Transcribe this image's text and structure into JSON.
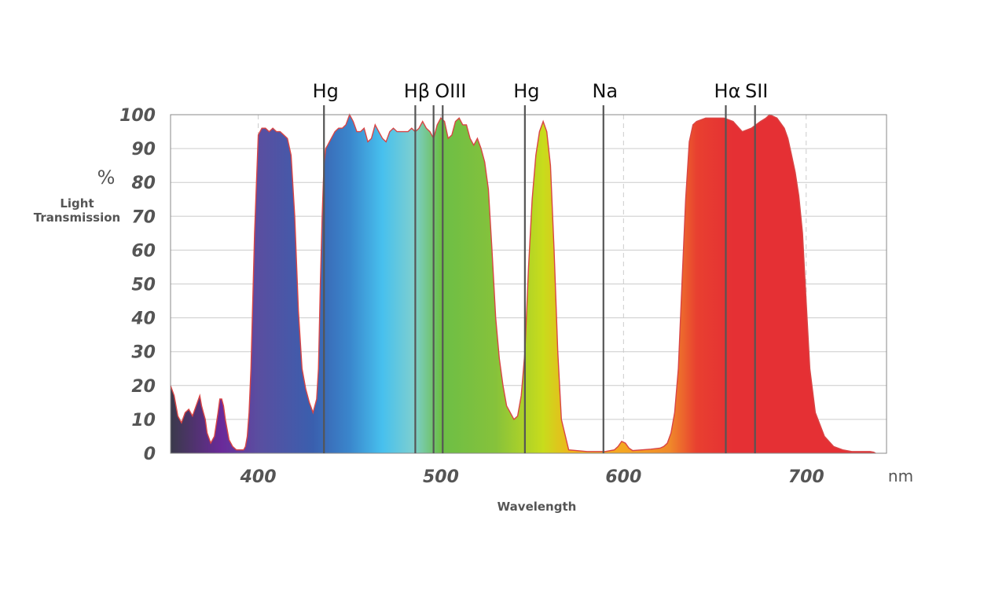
{
  "chart_data": {
    "type": "area",
    "xlabel": "Wavelength",
    "x_unit": "nm",
    "ylabel_unit": "%",
    "ylabel": "Light Transmission",
    "ylabel_lines": [
      "Light",
      "Transmission"
    ],
    "xlim": [
      352,
      744
    ],
    "ylim": [
      0,
      100
    ],
    "x_ticks": [
      400,
      500,
      600,
      700
    ],
    "y_ticks": [
      0,
      10,
      20,
      30,
      40,
      50,
      60,
      70,
      80,
      90,
      100
    ],
    "grid": true,
    "series": [
      {
        "x": [
          352,
          354,
          356,
          358,
          360,
          362,
          364,
          366,
          368,
          369,
          370,
          371,
          372,
          374,
          376,
          378,
          379,
          380,
          381,
          382,
          384,
          386,
          388,
          390,
          392,
          393,
          394,
          395,
          396,
          397,
          398,
          400,
          402,
          404,
          406,
          408,
          410,
          412,
          414,
          416,
          418,
          420,
          422,
          424,
          426,
          428,
          430,
          432,
          433,
          434,
          435,
          436,
          437,
          438,
          439,
          440,
          442,
          444,
          446,
          448,
          450,
          452,
          454,
          456,
          458,
          460,
          462,
          464,
          466,
          468,
          470,
          472,
          474,
          476,
          478,
          480,
          482,
          484,
          486,
          488,
          490,
          492,
          494,
          496,
          498,
          500,
          502,
          504,
          506,
          508,
          510,
          512,
          514,
          516,
          518,
          520,
          522,
          524,
          526,
          528,
          530,
          532,
          534,
          536,
          538,
          540,
          542,
          544,
          546,
          548,
          550,
          552,
          554,
          556,
          558,
          560,
          562,
          564,
          566,
          570,
          580,
          590,
          595,
          597,
          599,
          601,
          603,
          605,
          610,
          615,
          620,
          622,
          624,
          626,
          628,
          630,
          632,
          634,
          636,
          638,
          640,
          645,
          650,
          655,
          660,
          665,
          670,
          675,
          678,
          680,
          684,
          688,
          690,
          692,
          694,
          696,
          698,
          700,
          702,
          705,
          710,
          715,
          720,
          725,
          730,
          735,
          737,
          738
        ],
        "y": [
          20,
          17,
          11,
          9,
          12,
          13,
          11,
          14,
          17,
          14,
          12,
          10,
          6,
          3,
          5,
          12,
          16,
          16,
          14,
          10,
          4,
          2,
          1,
          1,
          1,
          2,
          5,
          12,
          25,
          45,
          65,
          94,
          96,
          96,
          95,
          96,
          95,
          95,
          94,
          93,
          88,
          70,
          42,
          25,
          19,
          15,
          12,
          16,
          25,
          50,
          70,
          85,
          90,
          91,
          92,
          93,
          95,
          96,
          96,
          97,
          100,
          98,
          95,
          95,
          96,
          92,
          93,
          97,
          95,
          93,
          92,
          95,
          96,
          95,
          95,
          95,
          95,
          96,
          95,
          96,
          98,
          96,
          95,
          93,
          97,
          99,
          98,
          93,
          94,
          98,
          99,
          97,
          97,
          93,
          91,
          93,
          90,
          86,
          78,
          60,
          40,
          28,
          20,
          14,
          12,
          10,
          11,
          17,
          30,
          55,
          75,
          88,
          95,
          98,
          95,
          85,
          60,
          30,
          10,
          1,
          0.5,
          0.5,
          1,
          2,
          3.5,
          3,
          1.5,
          0.8,
          1,
          1.2,
          1.5,
          2,
          3,
          6,
          12,
          25,
          50,
          75,
          92,
          97,
          98,
          99,
          99,
          99,
          98,
          95,
          96,
          98,
          99,
          100,
          99,
          96,
          93,
          88,
          83,
          76,
          65,
          45,
          25,
          12,
          5,
          2,
          1,
          0.5,
          0.5,
          0.5,
          0.3,
          0
        ]
      }
    ],
    "emission_lines": [
      {
        "name": "Hg",
        "x": 436
      },
      {
        "name": "Hβ",
        "x": 486
      },
      {
        "name": "OIII",
        "x": 496
      },
      {
        "name": "OIII",
        "x": 501
      },
      {
        "name": "Hg",
        "x": 546
      },
      {
        "name": "Na",
        "x": 589
      },
      {
        "name": "Hα",
        "x": 656
      },
      {
        "name": "SII",
        "x": 672
      }
    ],
    "emission_labels": [
      {
        "text": "Hg",
        "x": 436
      },
      {
        "text": "Hβ",
        "x": 486
      },
      {
        "text": "OIII",
        "x": 501
      },
      {
        "text": "Hg",
        "x": 546
      },
      {
        "text": "Na",
        "x": 589
      },
      {
        "text": "Hα",
        "x": 656
      },
      {
        "text": "SII",
        "x": 672
      }
    ],
    "colors": {
      "curve": "#d94545",
      "grid": "#cccccc",
      "emission_line": "#555555",
      "text": "#555555"
    },
    "fill_gradient": [
      {
        "nm": 352,
        "color": "#3a3a4a"
      },
      {
        "nm": 380,
        "color": "#6a2a9a"
      },
      {
        "nm": 400,
        "color": "#5a4ea0"
      },
      {
        "nm": 430,
        "color": "#3a5fae"
      },
      {
        "nm": 450,
        "color": "#3a86cc"
      },
      {
        "nm": 468,
        "color": "#47c0ee"
      },
      {
        "nm": 485,
        "color": "#7dcfd0"
      },
      {
        "nm": 500,
        "color": "#6cbe46"
      },
      {
        "nm": 530,
        "color": "#86c23b"
      },
      {
        "nm": 556,
        "color": "#c8dc1c"
      },
      {
        "nm": 572,
        "color": "#f2b21c"
      },
      {
        "nm": 600,
        "color": "#f4a622"
      },
      {
        "nm": 625,
        "color": "#f08a2a"
      },
      {
        "nm": 640,
        "color": "#e84030"
      },
      {
        "nm": 660,
        "color": "#e53034"
      },
      {
        "nm": 744,
        "color": "#e53034"
      }
    ]
  }
}
